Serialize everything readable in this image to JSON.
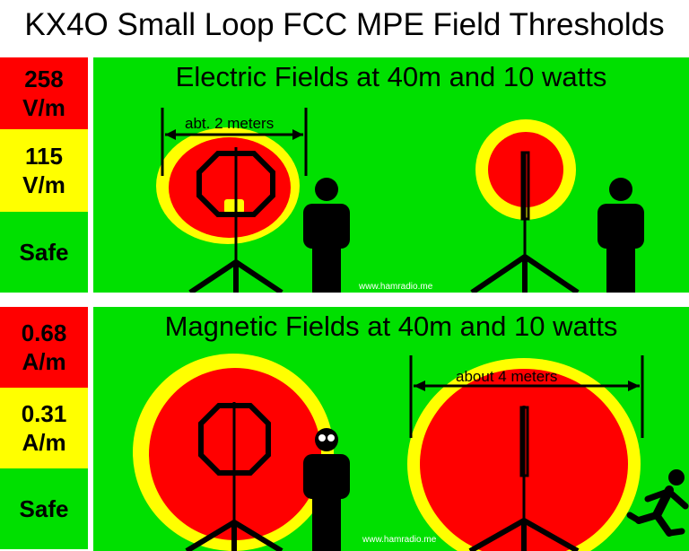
{
  "title": "KX4O Small Loop FCC MPE Field Thresholds",
  "electric": {
    "heading": "Electric Fields at 40m and 10 watts",
    "legend_high": [
      "258",
      "V/m"
    ],
    "legend_mid": [
      "115",
      "V/m"
    ],
    "legend_safe": "Safe",
    "dimension_label": "abt. 2 meters",
    "watermark": "www.hamradio.me"
  },
  "magnetic": {
    "heading": "Magnetic Fields at 40m and 10 watts",
    "legend_high": [
      "0.68",
      "A/m"
    ],
    "legend_mid": [
      "0.31",
      "A/m"
    ],
    "legend_safe": "Safe",
    "dimension_label": "about 4 meters",
    "watermark": "www.hamradio.me"
  },
  "colors": {
    "high": "#ff0000",
    "mid": "#ffff00",
    "safe": "#00e000"
  },
  "icons": [
    "loop-antenna-icon",
    "tripod-icon",
    "person-icon",
    "running-person-icon"
  ]
}
